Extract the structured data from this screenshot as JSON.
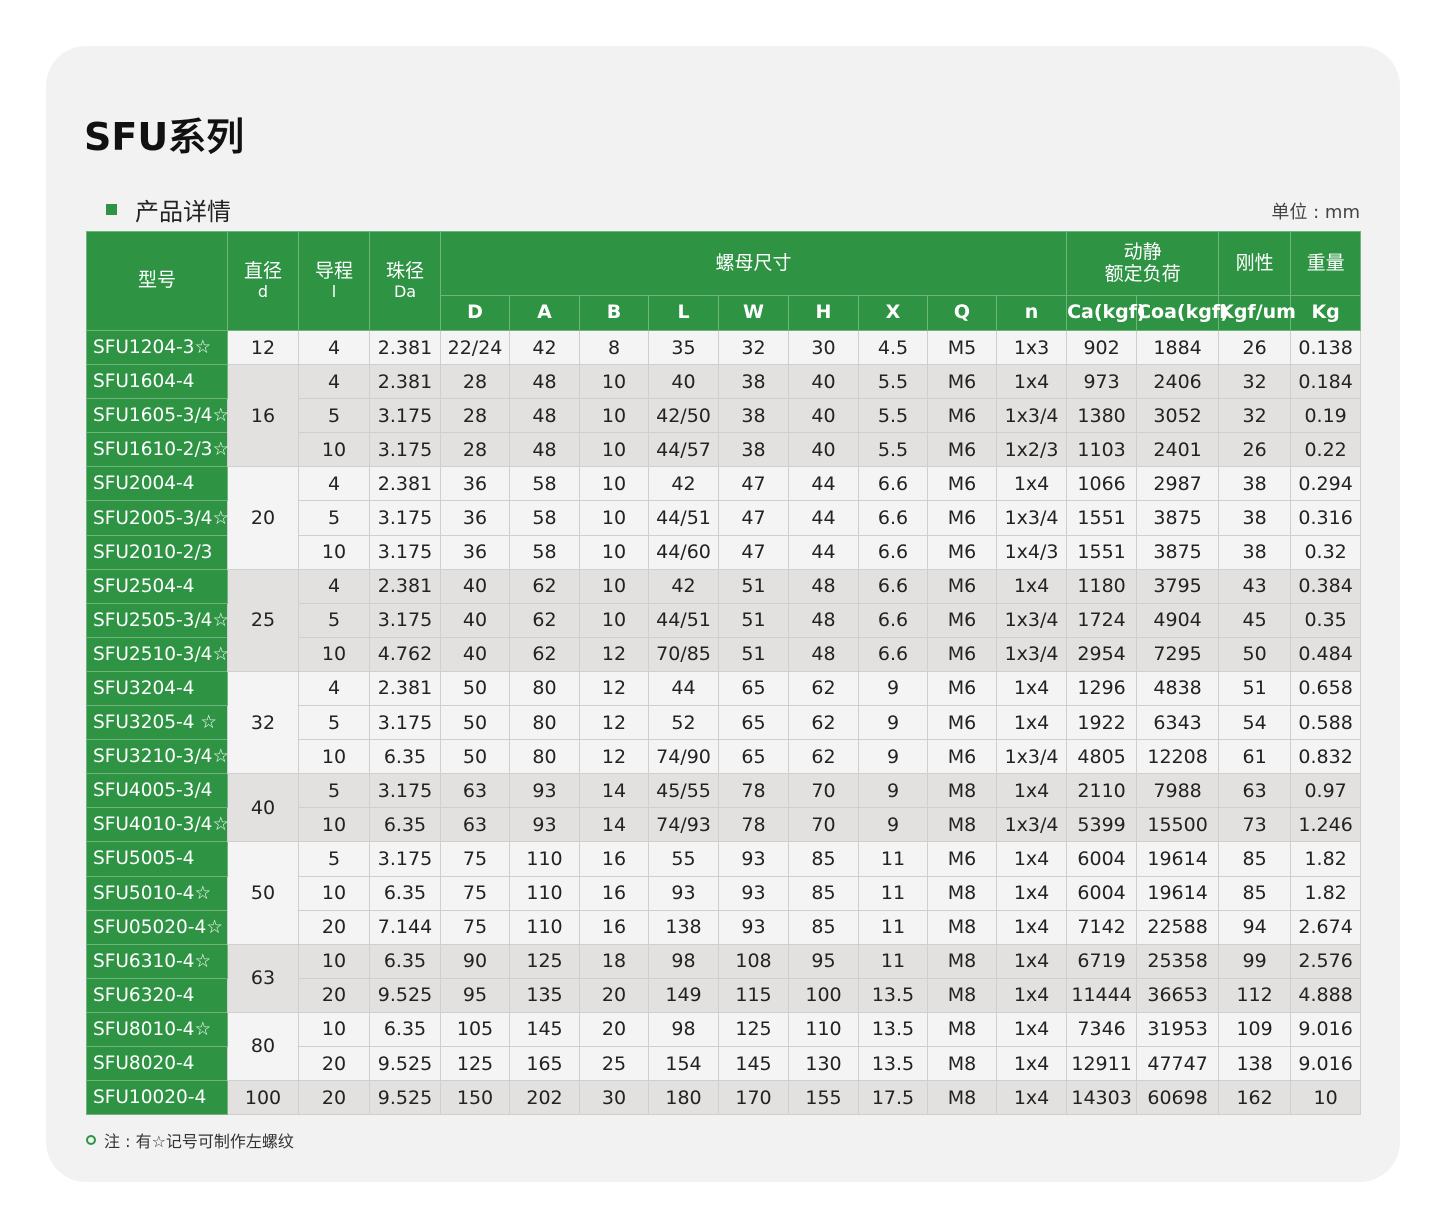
{
  "title": "SFU系列",
  "section": "产品详情",
  "unit": "单位 : mm",
  "colors": {
    "accent": "#2e9444",
    "row_light": "#f4f4f4",
    "row_gray": "#e3e1df"
  },
  "headers": {
    "model": "型号",
    "diameter": "直径",
    "diameter_sym": "d",
    "lead": "导程",
    "lead_sym": "l",
    "ball": "珠径",
    "ball_sym": "Da",
    "nut": "螺母尺寸",
    "load1": "动静",
    "load2": "额定负荷",
    "rigidity": "刚性",
    "weight": "重量",
    "sub": [
      "D",
      "A",
      "B",
      "L",
      "W",
      "H",
      "X",
      "Q",
      "n",
      "Ca(kgf)",
      "Coa(kgf)",
      "Kgf/um",
      "Kg"
    ]
  },
  "groups": [
    {
      "d": "12",
      "rows": [
        [
          "SFU1204-3☆",
          "4",
          "2.381",
          "22/24",
          "42",
          "8",
          "35",
          "32",
          "30",
          "4.5",
          "M5",
          "1x3",
          "902",
          "1884",
          "26",
          "0.138"
        ]
      ]
    },
    {
      "d": "16",
      "rows": [
        [
          "SFU1604-4",
          "4",
          "2.381",
          "28",
          "48",
          "10",
          "40",
          "38",
          "40",
          "5.5",
          "M6",
          "1x4",
          "973",
          "2406",
          "32",
          "0.184"
        ],
        [
          "SFU1605-3/4☆",
          "5",
          "3.175",
          "28",
          "48",
          "10",
          "42/50",
          "38",
          "40",
          "5.5",
          "M6",
          "1x3/4",
          "1380",
          "3052",
          "32",
          "0.19"
        ],
        [
          "SFU1610-2/3☆",
          "10",
          "3.175",
          "28",
          "48",
          "10",
          "44/57",
          "38",
          "40",
          "5.5",
          "M6",
          "1x2/3",
          "1103",
          "2401",
          "26",
          "0.22"
        ]
      ]
    },
    {
      "d": "20",
      "rows": [
        [
          "SFU2004-4",
          "4",
          "2.381",
          "36",
          "58",
          "10",
          "42",
          "47",
          "44",
          "6.6",
          "M6",
          "1x4",
          "1066",
          "2987",
          "38",
          "0.294"
        ],
        [
          "SFU2005-3/4☆",
          "5",
          "3.175",
          "36",
          "58",
          "10",
          "44/51",
          "47",
          "44",
          "6.6",
          "M6",
          "1x3/4",
          "1551",
          "3875",
          "38",
          "0.316"
        ],
        [
          "SFU2010-2/3",
          "10",
          "3.175",
          "36",
          "58",
          "10",
          "44/60",
          "47",
          "44",
          "6.6",
          "M6",
          "1x4/3",
          "1551",
          "3875",
          "38",
          "0.32"
        ]
      ]
    },
    {
      "d": "25",
      "rows": [
        [
          "SFU2504-4",
          "4",
          "2.381",
          "40",
          "62",
          "10",
          "42",
          "51",
          "48",
          "6.6",
          "M6",
          "1x4",
          "1180",
          "3795",
          "43",
          "0.384"
        ],
        [
          "SFU2505-3/4☆",
          "5",
          "3.175",
          "40",
          "62",
          "10",
          "44/51",
          "51",
          "48",
          "6.6",
          "M6",
          "1x3/4",
          "1724",
          "4904",
          "45",
          "0.35"
        ],
        [
          "SFU2510-3/4☆",
          "10",
          "4.762",
          "40",
          "62",
          "12",
          "70/85",
          "51",
          "48",
          "6.6",
          "M6",
          "1x3/4",
          "2954",
          "7295",
          "50",
          "0.484"
        ]
      ]
    },
    {
      "d": "32",
      "rows": [
        [
          "SFU3204-4",
          "4",
          "2.381",
          "50",
          "80",
          "12",
          "44",
          "65",
          "62",
          "9",
          "M6",
          "1x4",
          "1296",
          "4838",
          "51",
          "0.658"
        ],
        [
          "SFU3205-4 ☆",
          "5",
          "3.175",
          "50",
          "80",
          "12",
          "52",
          "65",
          "62",
          "9",
          "M6",
          "1x4",
          "1922",
          "6343",
          "54",
          "0.588"
        ],
        [
          "SFU3210-3/4☆",
          "10",
          "6.35",
          "50",
          "80",
          "12",
          "74/90",
          "65",
          "62",
          "9",
          "M6",
          "1x3/4",
          "4805",
          "12208",
          "61",
          "0.832"
        ]
      ]
    },
    {
      "d": "40",
      "rows": [
        [
          "SFU4005-3/4",
          "5",
          "3.175",
          "63",
          "93",
          "14",
          "45/55",
          "78",
          "70",
          "9",
          "M8",
          "1x4",
          "2110",
          "7988",
          "63",
          "0.97"
        ],
        [
          "SFU4010-3/4☆",
          "10",
          "6.35",
          "63",
          "93",
          "14",
          "74/93",
          "78",
          "70",
          "9",
          "M8",
          "1x3/4",
          "5399",
          "15500",
          "73",
          "1.246"
        ]
      ]
    },
    {
      "d": "50",
      "rows": [
        [
          "SFU5005-4",
          "5",
          "3.175",
          "75",
          "110",
          "16",
          "55",
          "93",
          "85",
          "11",
          "M6",
          "1x4",
          "6004",
          "19614",
          "85",
          "1.82"
        ],
        [
          "SFU5010-4☆",
          "10",
          "6.35",
          "75",
          "110",
          "16",
          "93",
          "93",
          "85",
          "11",
          "M8",
          "1x4",
          "6004",
          "19614",
          "85",
          "1.82"
        ],
        [
          "SFU05020-4☆",
          "20",
          "7.144",
          "75",
          "110",
          "16",
          "138",
          "93",
          "85",
          "11",
          "M8",
          "1x4",
          "7142",
          "22588",
          "94",
          "2.674"
        ]
      ]
    },
    {
      "d": "63",
      "rows": [
        [
          "SFU6310-4☆",
          "10",
          "6.35",
          "90",
          "125",
          "18",
          "98",
          "108",
          "95",
          "11",
          "M8",
          "1x4",
          "6719",
          "25358",
          "99",
          "2.576"
        ],
        [
          "SFU6320-4",
          "20",
          "9.525",
          "95",
          "135",
          "20",
          "149",
          "115",
          "100",
          "13.5",
          "M8",
          "1x4",
          "11444",
          "36653",
          "112",
          "4.888"
        ]
      ]
    },
    {
      "d": "80",
      "rows": [
        [
          "SFU8010-4☆",
          "10",
          "6.35",
          "105",
          "145",
          "20",
          "98",
          "125",
          "110",
          "13.5",
          "M8",
          "1x4",
          "7346",
          "31953",
          "109",
          "9.016"
        ],
        [
          "SFU8020-4",
          "20",
          "9.525",
          "125",
          "165",
          "25",
          "154",
          "145",
          "130",
          "13.5",
          "M8",
          "1x4",
          "12911",
          "47747",
          "138",
          "9.016"
        ]
      ]
    },
    {
      "d": "100",
      "rows": [
        [
          "SFU10020-4",
          "20",
          "9.525",
          "150",
          "202",
          "30",
          "180",
          "170",
          "155",
          "17.5",
          "M8",
          "1x4",
          "14303",
          "60698",
          "162",
          "10"
        ]
      ]
    }
  ],
  "note": "注 : 有☆记号可制作左螺纹"
}
